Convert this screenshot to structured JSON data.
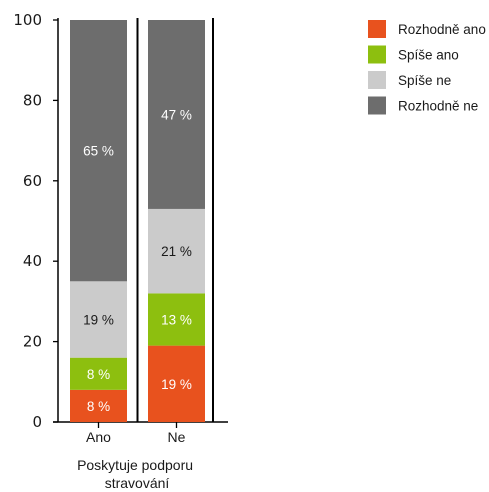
{
  "chart_data": {
    "type": "bar",
    "stacked": true,
    "xlabel": "Poskytuje podporu stravování",
    "ylabel": "",
    "ylim": [
      0,
      100
    ],
    "yticks": [
      0,
      20,
      40,
      60,
      80,
      100
    ],
    "categories": [
      "Ano",
      "Ne"
    ],
    "series": [
      {
        "name": "Rozhodně ano",
        "color": "#e8521e",
        "values": [
          8,
          19
        ],
        "labels": [
          "8 %",
          "19 %"
        ]
      },
      {
        "name": "Spíše ano",
        "color": "#8dbf0f",
        "values": [
          8,
          13
        ],
        "labels": [
          "8 %",
          "13 %"
        ]
      },
      {
        "name": "Spíše ne",
        "color": "#cbcbcb",
        "values": [
          19,
          21
        ],
        "labels": [
          "19 %",
          "21 %"
        ]
      },
      {
        "name": "Rozhodně ne",
        "color": "#6d6d6d",
        "values": [
          65,
          47
        ],
        "labels": [
          "65 %",
          "47 %"
        ]
      }
    ],
    "legend_position": "top-right",
    "grid": false
  }
}
